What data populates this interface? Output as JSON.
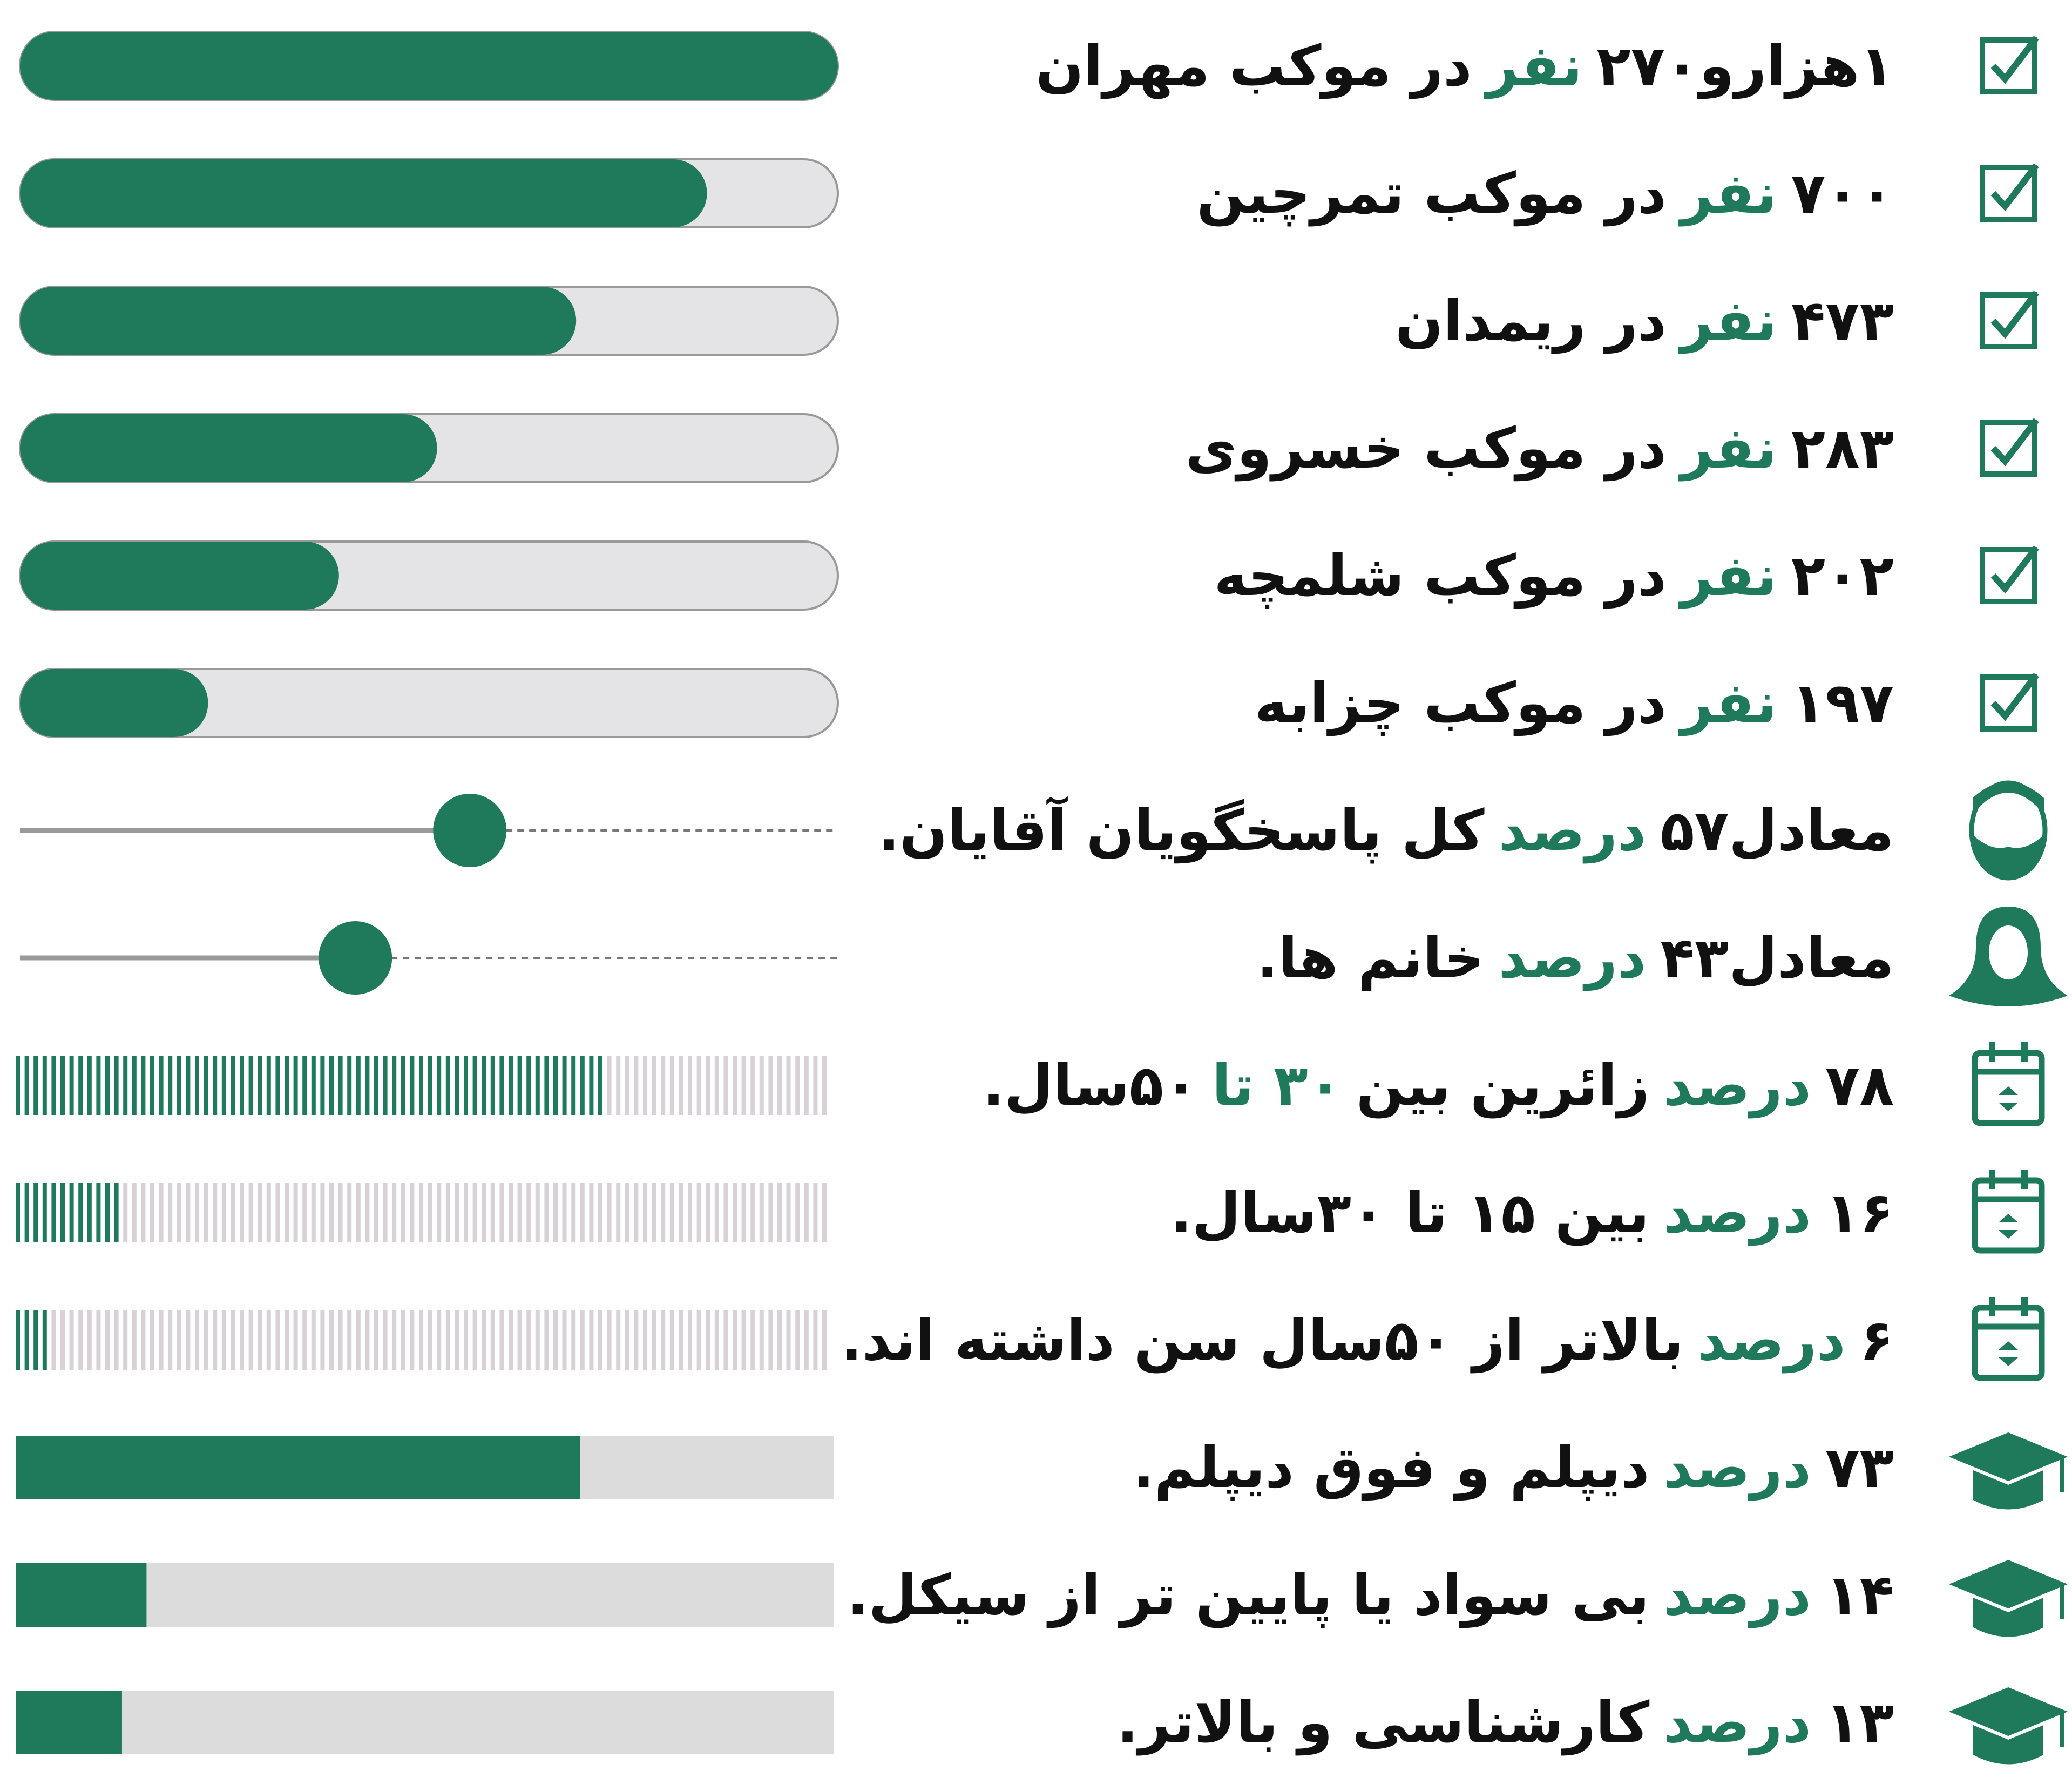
{
  "rows": [
    {
      "parts": [
        {
          "text": "۱هزارو۲۷۰"
        },
        {
          "text": "نفر",
          "color": "#1e7a5a"
        },
        {
          "text": "در موکب مهران"
        }
      ]
    },
    {
      "parts": [
        {
          "text": "۷۰۰"
        },
        {
          "text": "نفر",
          "color": "#1e7a5a"
        },
        {
          "text": "در موکب تمرچین"
        }
      ]
    },
    {
      "parts": [
        {
          "text": "۴۷۳"
        },
        {
          "text": "نفر",
          "color": "#1e7a5a"
        },
        {
          "text": "در ریمدان"
        }
      ]
    },
    {
      "parts": [
        {
          "text": "۲۸۳"
        },
        {
          "text": "نفر",
          "color": "#1e7a5a"
        },
        {
          "text": "در موکب خسروی"
        }
      ]
    },
    {
      "parts": [
        {
          "text": "۲۰۲"
        },
        {
          "text": "نفر",
          "color": "#1e7a5a"
        },
        {
          "text": "در موکب شلمچه"
        }
      ]
    },
    {
      "parts": [
        {
          "text": "۱۹۷"
        },
        {
          "text": "نفر",
          "color": "#1e7a5a"
        },
        {
          "text": "در موکب چزابه"
        }
      ]
    },
    {
      "parts": [
        {
          "text": "معادل۵۷"
        },
        {
          "text": "درصد",
          "color": "#1e7a5a"
        },
        {
          "text": "کل پاسخگویان آقایان."
        }
      ]
    },
    {
      "parts": [
        {
          "text": "معادل۴۳"
        },
        {
          "text": "درصد",
          "color": "#1e7a5a"
        },
        {
          "text": "خانم ها."
        }
      ]
    },
    {
      "parts": [
        {
          "text": "۷۸"
        },
        {
          "text": "درصد",
          "color": "#1e7a5a"
        },
        {
          "text": "زائرین بین"
        },
        {
          "text": "۳۰ تا",
          "color": "#1e7a5a"
        },
        {
          "text": "۵۰سال."
        }
      ]
    },
    {
      "parts": [
        {
          "text": "۱۶"
        },
        {
          "text": "درصد",
          "color": "#1e7a5a"
        },
        {
          "text": "بین ۱۵ تا ۳۰سال."
        }
      ]
    },
    {
      "parts": [
        {
          "text": "۶"
        },
        {
          "text": "درصد",
          "color": "#1e7a5a"
        },
        {
          "text": "بالاتر از ۵۰سال سن داشته اند."
        }
      ]
    },
    {
      "parts": [
        {
          "text": "۷۳"
        },
        {
          "text": "درصد",
          "color": "#1e7a5a"
        },
        {
          "text": "دیپلم و فوق دیپلم."
        }
      ]
    },
    {
      "parts": [
        {
          "text": "۱۴"
        },
        {
          "text": "درصد",
          "color": "#1e7a5a"
        },
        {
          "text": "بی سواد یا پایین تر از سیکل."
        }
      ]
    },
    {
      "parts": [
        {
          "text": "۱۳"
        },
        {
          "text": "درصد",
          "color": "#1e7a5a"
        },
        {
          "text": "کارشناسی و بالاتر."
        }
      ]
    }
  ]
}
